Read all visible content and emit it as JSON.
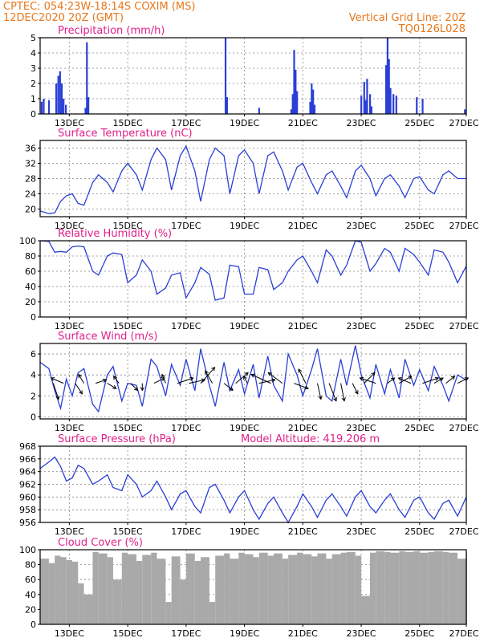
{
  "header": {
    "line1_left": "CPTEC:   054:23W-18:14S   COXIM (MS)",
    "line2_left": "12DEC2020 20Z (GMT)",
    "line1_right": "Vertical Grid Line: 20Z",
    "line2_right": "TQ0126L028"
  },
  "colors": {
    "line": "#2a3fd6",
    "cloud": "#a9a9a9",
    "title": "#e0208a",
    "header": "#e8771a"
  },
  "x_tick_labels": [
    "13DEC",
    "15DEC",
    "17DEC",
    "19DEC",
    "21DEC",
    "23DEC",
    "25DEC",
    "27DEC"
  ],
  "chart_data": [
    {
      "type": "bar",
      "title": "Precipitation (mm/h)",
      "ylim": [
        0,
        5
      ],
      "yticks": [
        0,
        1,
        2,
        3,
        4,
        5
      ],
      "x_range": [
        0,
        14.6
      ],
      "x": [
        0.05,
        0.12,
        0.3,
        0.55,
        0.62,
        0.68,
        0.74,
        0.8,
        0.88,
        1.55,
        1.6,
        1.65,
        6.35,
        6.4,
        7.5,
        8.6,
        8.65,
        8.7,
        8.75,
        8.8,
        9.25,
        9.3,
        9.35,
        9.4,
        11.0,
        11.1,
        11.15,
        11.2,
        11.3,
        11.35,
        11.85,
        11.9,
        11.95,
        12.0,
        12.1,
        12.2,
        12.9,
        13.1,
        14.55
      ],
      "values": [
        0.8,
        1.0,
        0.9,
        2.0,
        2.5,
        2.8,
        2.0,
        1.0,
        0.6,
        0.4,
        4.7,
        1.1,
        5.0,
        1.1,
        0.4,
        0.3,
        1.3,
        4.2,
        2.9,
        1.5,
        0.8,
        2.0,
        1.6,
        0.6,
        1.2,
        2.1,
        0.9,
        2.3,
        1.3,
        0.5,
        3.2,
        5.0,
        3.6,
        1.7,
        1.3,
        1.2,
        1.1,
        1.0,
        0.3
      ]
    },
    {
      "type": "line",
      "title": "Surface Temperature (nC)",
      "ylim": [
        18,
        38
      ],
      "yticks": [
        20,
        24,
        28,
        32,
        36
      ],
      "x_range": [
        0,
        14.6
      ],
      "x": [
        0,
        0.3,
        0.5,
        0.7,
        0.9,
        1.1,
        1.3,
        1.5,
        1.8,
        2.0,
        2.3,
        2.5,
        2.8,
        3.0,
        3.3,
        3.5,
        3.8,
        4.0,
        4.3,
        4.5,
        4.8,
        5.0,
        5.3,
        5.5,
        5.8,
        6.0,
        6.3,
        6.5,
        6.8,
        7.0,
        7.3,
        7.5,
        7.8,
        8.0,
        8.3,
        8.5,
        8.8,
        9.0,
        9.3,
        9.5,
        9.8,
        10.0,
        10.3,
        10.5,
        10.8,
        11.0,
        11.3,
        11.5,
        11.8,
        12.0,
        12.3,
        12.5,
        12.8,
        13.0,
        13.3,
        13.5,
        13.8,
        14.0,
        14.3,
        14.6
      ],
      "values": [
        19.5,
        18.8,
        19.0,
        22.0,
        23.5,
        24.0,
        21.5,
        21.0,
        27.0,
        29.0,
        27.0,
        24.5,
        30.0,
        32.0,
        29.0,
        25.0,
        33.0,
        36.0,
        33.0,
        25.0,
        34.0,
        36.5,
        30.0,
        22.0,
        33.0,
        36.0,
        34.0,
        24.0,
        34.0,
        35.5,
        32.0,
        24.0,
        34.0,
        35.0,
        30.0,
        25.0,
        31.0,
        32.0,
        27.0,
        24.0,
        29.0,
        30.0,
        26.0,
        23.0,
        30.0,
        31.5,
        28.0,
        23.5,
        28.0,
        29.0,
        26.0,
        23.0,
        28.0,
        28.5,
        25.0,
        24.0,
        29.0,
        30.0,
        28.0,
        28.0
      ]
    },
    {
      "type": "line",
      "title": "Relative Humidity (%)",
      "ylim": [
        0,
        100
      ],
      "yticks": [
        0,
        20,
        40,
        60,
        80,
        100
      ],
      "x_range": [
        0,
        14.6
      ],
      "x": [
        0,
        0.3,
        0.5,
        0.7,
        0.9,
        1.1,
        1.3,
        1.5,
        1.8,
        2.0,
        2.3,
        2.5,
        2.8,
        3.0,
        3.3,
        3.5,
        3.8,
        4.0,
        4.3,
        4.5,
        4.8,
        5.0,
        5.3,
        5.5,
        5.8,
        6.0,
        6.3,
        6.5,
        6.8,
        7.0,
        7.3,
        7.5,
        7.8,
        8.0,
        8.3,
        8.5,
        8.8,
        9.0,
        9.3,
        9.5,
        9.8,
        10.0,
        10.3,
        10.5,
        10.8,
        11.0,
        11.3,
        11.5,
        11.8,
        12.0,
        12.3,
        12.5,
        12.8,
        13.0,
        13.3,
        13.5,
        13.8,
        14.0,
        14.3,
        14.6
      ],
      "values": [
        100,
        99,
        85,
        86,
        85,
        92,
        93,
        92,
        60,
        55,
        80,
        84,
        82,
        45,
        55,
        75,
        60,
        30,
        38,
        55,
        58,
        25,
        45,
        65,
        56,
        22,
        25,
        68,
        66,
        30,
        30,
        65,
        62,
        36,
        45,
        60,
        75,
        80,
        60,
        45,
        88,
        80,
        55,
        68,
        100,
        98,
        60,
        70,
        90,
        85,
        60,
        90,
        82,
        72,
        55,
        88,
        85,
        72,
        45,
        67
      ]
    },
    {
      "type": "line",
      "title": "Surface Wind (m/s)",
      "ylim": [
        -0.2,
        7
      ],
      "yticks": [
        0,
        2,
        4,
        6
      ],
      "x_range": [
        0,
        14.6
      ],
      "x": [
        0,
        0.3,
        0.5,
        0.7,
        0.9,
        1.1,
        1.3,
        1.5,
        1.8,
        2.0,
        2.3,
        2.5,
        2.8,
        3.0,
        3.3,
        3.5,
        3.8,
        4.0,
        4.3,
        4.5,
        4.8,
        5.0,
        5.3,
        5.5,
        5.8,
        6.0,
        6.3,
        6.5,
        6.8,
        7.0,
        7.3,
        7.5,
        7.8,
        8.0,
        8.3,
        8.5,
        8.8,
        9.0,
        9.3,
        9.5,
        9.8,
        10.0,
        10.3,
        10.5,
        10.8,
        11.0,
        11.3,
        11.5,
        11.8,
        12.0,
        12.3,
        12.5,
        12.8,
        13.0,
        13.3,
        13.5,
        13.8,
        14.0,
        14.3,
        14.6
      ],
      "values": [
        5.2,
        4.6,
        2.5,
        0.8,
        3.6,
        2.0,
        4.2,
        4.6,
        1.2,
        0.5,
        4.0,
        4.8,
        1.5,
        3.2,
        3.0,
        1.0,
        5.5,
        4.8,
        2.0,
        5.0,
        3.0,
        5.5,
        2.5,
        6.5,
        3.0,
        1.0,
        5.2,
        2.5,
        4.5,
        2.2,
        5.0,
        1.8,
        5.8,
        3.0,
        1.5,
        6.0,
        4.0,
        2.0,
        4.5,
        6.5,
        2.0,
        1.5,
        5.5,
        3.0,
        6.8,
        4.0,
        1.8,
        5.0,
        2.2,
        4.5,
        1.8,
        5.5,
        3.0,
        4.5,
        2.5,
        4.8,
        3.0,
        1.5,
        4.0,
        3.5
      ],
      "vectors_x": [
        0.45,
        0.8,
        1.2,
        1.5,
        1.9,
        2.3,
        2.7,
        3.1,
        3.5,
        3.9,
        4.3,
        4.7,
        5.1,
        5.5,
        5.9,
        6.3,
        6.7,
        7.1,
        7.5,
        7.9,
        8.3,
        8.7,
        9.1,
        9.5,
        9.9,
        10.3,
        10.7,
        11.1,
        11.5,
        11.9,
        12.3,
        12.7,
        13.1,
        13.5,
        13.9,
        14.3
      ],
      "vectors_u": [
        0.3,
        -0.7,
        0.4,
        -0.3,
        0.6,
        0.5,
        -0.3,
        0.4,
        0.0,
        0.6,
        -0.2,
        0.9,
        0.9,
        0.8,
        -0.4,
        0.5,
        0.7,
        -0.2,
        0.9,
        -1.1,
        -0.8,
        0.8,
        -0.4,
        0.2,
        0.4,
        0.2,
        0.3,
        0.6,
        -0.9,
        0.4,
        0.7,
        -0.7,
        0.9,
        0.5,
        0.5,
        0.6
      ],
      "vectors_v": [
        -0.9,
        0.3,
        -0.6,
        0.5,
        0.2,
        -0.3,
        0.4,
        -0.4,
        -0.4,
        0.3,
        0.5,
        0.3,
        0.2,
        0.9,
        0.7,
        -0.4,
        0.6,
        0.4,
        0.2,
        0.5,
        0.6,
        -0.3,
        0.8,
        -0.9,
        -1.0,
        -1.0,
        -0.6,
        0.6,
        0.3,
        0.3,
        0.4,
        0.3,
        0.3,
        0.3,
        0.4,
        0.3
      ]
    },
    {
      "type": "line",
      "title": "Surface Pressure (hPa)",
      "annotation": "Model Altitude: 419.206 m",
      "ylim": [
        956,
        968
      ],
      "yticks": [
        956,
        958,
        960,
        962,
        964,
        966,
        968
      ],
      "x_range": [
        0,
        14.6
      ],
      "x": [
        0,
        0.3,
        0.5,
        0.7,
        0.9,
        1.1,
        1.3,
        1.5,
        1.8,
        2.0,
        2.3,
        2.5,
        2.8,
        3.0,
        3.3,
        3.5,
        3.8,
        4.0,
        4.3,
        4.5,
        4.8,
        5.0,
        5.3,
        5.5,
        5.8,
        6.0,
        6.3,
        6.5,
        6.8,
        7.0,
        7.3,
        7.5,
        7.8,
        8.0,
        8.3,
        8.5,
        8.8,
        9.0,
        9.3,
        9.5,
        9.8,
        10.0,
        10.3,
        10.5,
        10.8,
        11.0,
        11.3,
        11.5,
        11.8,
        12.0,
        12.3,
        12.5,
        12.8,
        13.0,
        13.3,
        13.5,
        13.8,
        14.0,
        14.3,
        14.6
      ],
      "values": [
        964.5,
        965.5,
        966.3,
        964.8,
        962.5,
        963.0,
        965.0,
        964.5,
        962.0,
        962.5,
        963.5,
        961.5,
        961.0,
        963.5,
        962.0,
        960.0,
        961.0,
        962.5,
        960.0,
        958.0,
        960.5,
        961.0,
        958.5,
        957.5,
        961.5,
        962.0,
        959.5,
        957.5,
        960.0,
        961.0,
        958.0,
        956.5,
        959.0,
        960.0,
        957.5,
        956.0,
        958.5,
        960.5,
        958.5,
        956.8,
        959.5,
        960.5,
        958.5,
        957.0,
        960.0,
        961.0,
        958.5,
        957.5,
        959.5,
        960.5,
        958.0,
        956.8,
        959.5,
        960.0,
        957.5,
        956.5,
        959.0,
        959.5,
        957.0,
        960.0
      ]
    },
    {
      "type": "bar",
      "title": "Cloud Cover (%)",
      "ylim": [
        0,
        100
      ],
      "yticks": [
        0,
        20,
        40,
        60,
        80,
        100
      ],
      "x_range": [
        0,
        14.6
      ],
      "bar_width": 0.125,
      "x": [
        0,
        0.3,
        0.5,
        0.7,
        0.9,
        1.1,
        1.3,
        1.5,
        1.8,
        2.0,
        2.3,
        2.5,
        2.8,
        3.0,
        3.3,
        3.5,
        3.8,
        4.0,
        4.3,
        4.5,
        4.8,
        5.0,
        5.3,
        5.5,
        5.8,
        6.0,
        6.3,
        6.5,
        6.8,
        7.0,
        7.3,
        7.5,
        7.8,
        8.0,
        8.3,
        8.5,
        8.8,
        9.0,
        9.3,
        9.5,
        9.8,
        10.0,
        10.3,
        10.5,
        10.8,
        11.0,
        11.3,
        11.5,
        11.8,
        12.0,
        12.3,
        12.5,
        12.8,
        13.0,
        13.3,
        13.5,
        13.8,
        14.0,
        14.3,
        14.6
      ],
      "values": [
        88,
        82,
        92,
        90,
        86,
        84,
        55,
        40,
        97,
        95,
        90,
        60,
        96,
        94,
        85,
        93,
        96,
        88,
        30,
        91,
        60,
        95,
        85,
        90,
        30,
        92,
        95,
        88,
        96,
        94,
        90,
        96,
        92,
        95,
        88,
        93,
        96,
        94,
        91,
        95,
        88,
        94,
        96,
        97,
        92,
        38,
        96,
        98,
        97,
        96,
        98,
        97,
        98,
        96,
        97,
        98,
        97,
        96,
        88,
        97
      ]
    }
  ]
}
